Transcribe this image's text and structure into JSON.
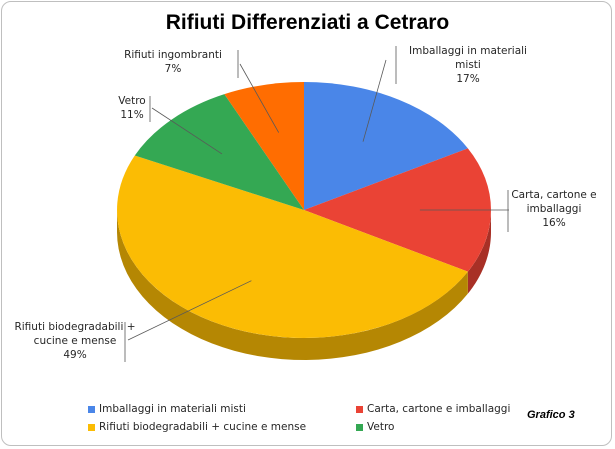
{
  "chart_data": {
    "type": "pie",
    "title": "Rifiuti Differenziati a Cetraro",
    "note": "Grafico 3",
    "slices": [
      {
        "name": "Imballaggi in materiali misti",
        "lines": [
          "Imballaggi in materiali",
          "misti"
        ],
        "pct_label": "17%",
        "value": 17,
        "color": "#4a86e8"
      },
      {
        "name": "Carta, cartone e imballaggi",
        "lines": [
          "Carta, cartone e",
          "imballaggi"
        ],
        "pct_label": "16%",
        "value": 16,
        "color": "#ea4335"
      },
      {
        "name": "Rifiuti biodegradabili + cucine e mense",
        "lines": [
          "Rifiuti biodegradabili +",
          "cucine e mense"
        ],
        "pct_label": "49%",
        "value": 49,
        "color": "#fbbc04"
      },
      {
        "name": "Vetro",
        "lines": [
          "Vetro"
        ],
        "pct_label": "11%",
        "value": 11,
        "color": "#34a853"
      },
      {
        "name": "Rifiuti ingombranti",
        "lines": [
          "Rifiuti ingombranti"
        ],
        "pct_label": "7%",
        "value": 7,
        "color": "#ff6d01"
      }
    ],
    "legend": [
      "Imballaggi in materiali misti",
      "Carta, cartone e imballaggi",
      "Rifiuti biodegradabili + cucine e mense",
      "Vetro"
    ],
    "legend_placement": "bottom"
  }
}
